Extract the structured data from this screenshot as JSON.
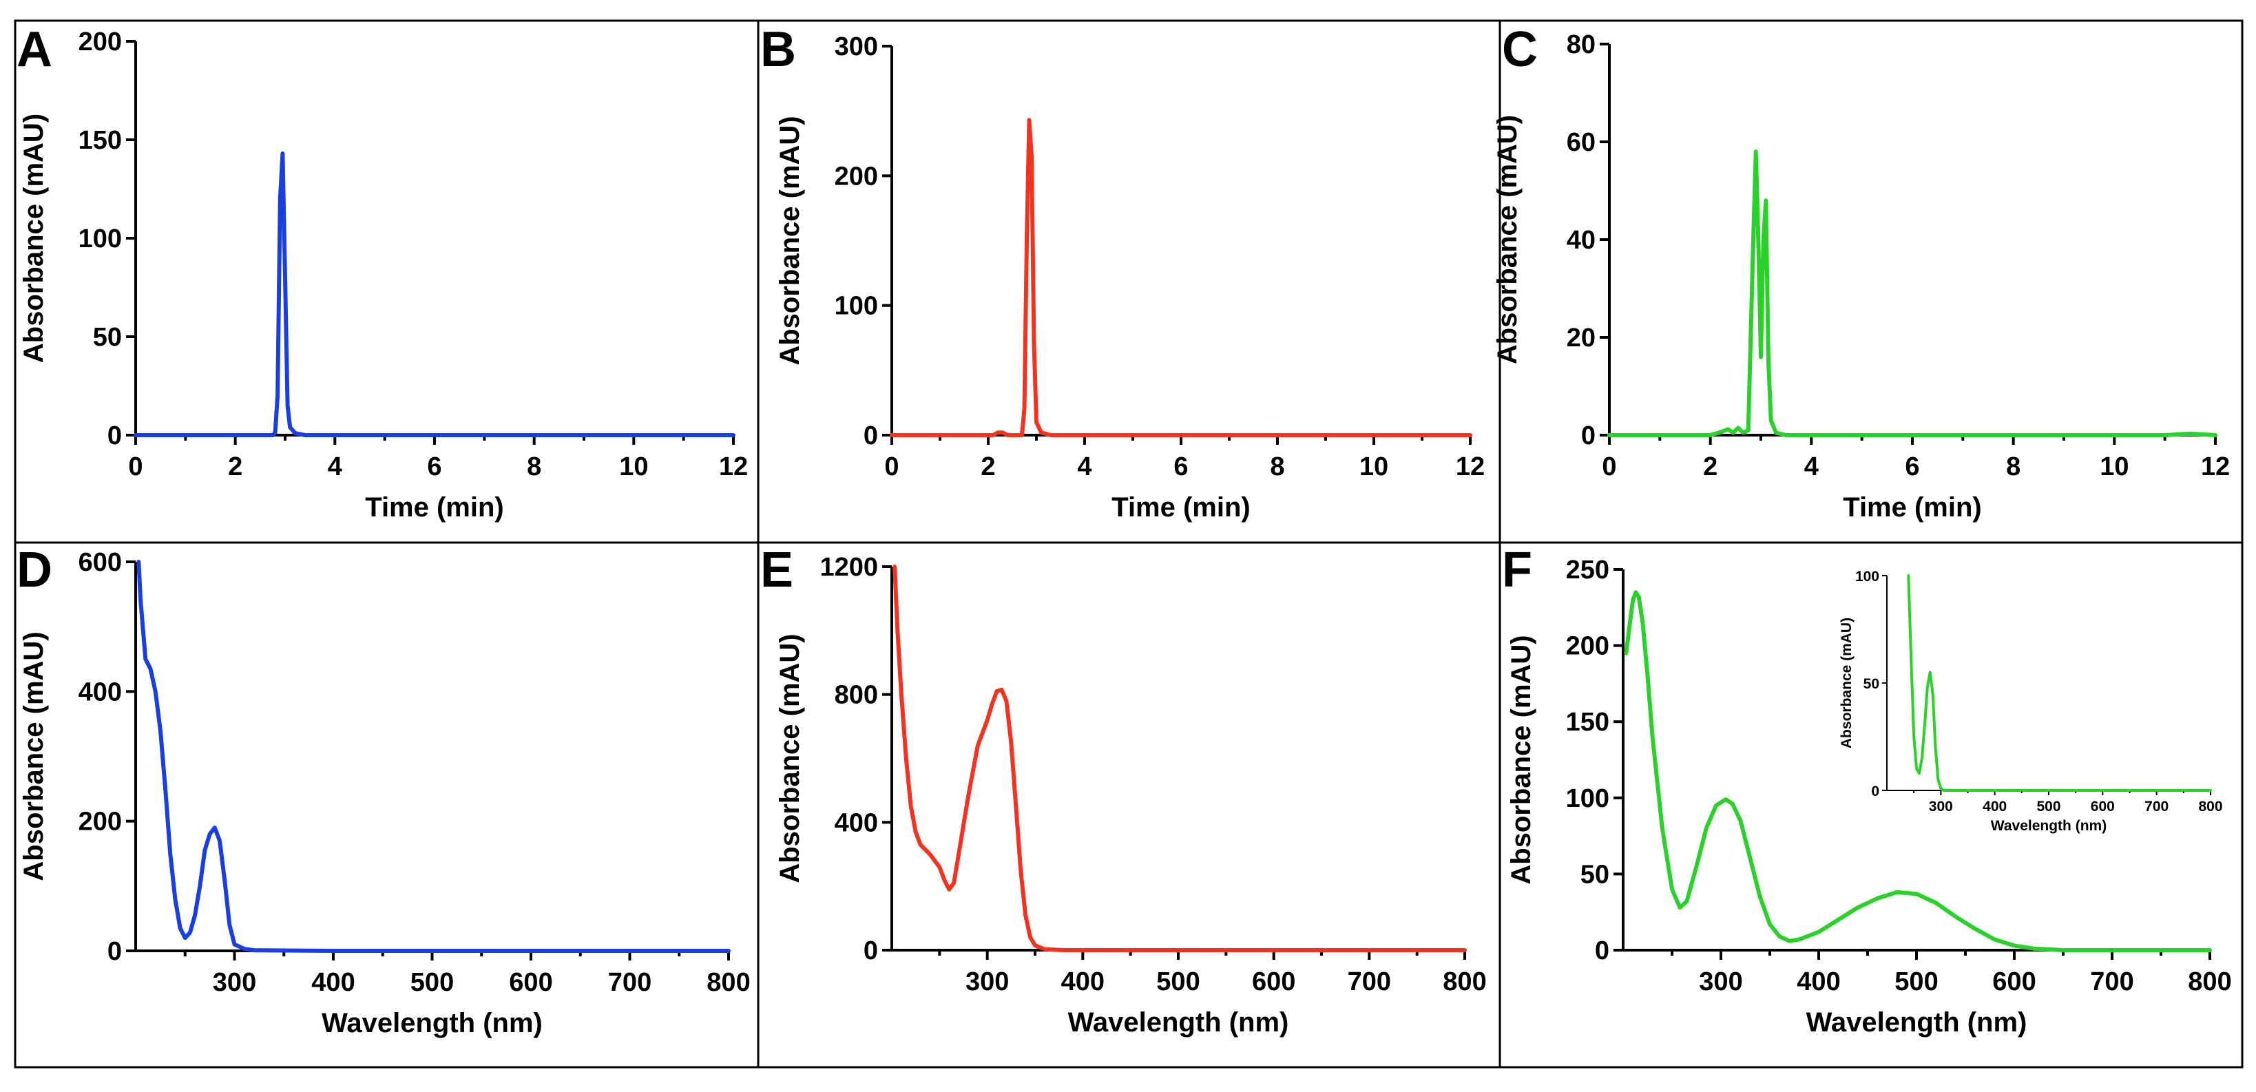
{
  "figure": {
    "colors": {
      "blue": "#1a3fe0",
      "red": "#f2331f",
      "green": "#2bd12b"
    }
  },
  "chart_data": [
    {
      "id": "A",
      "label": "A",
      "type": "line",
      "xlabel": "Time (min)",
      "ylabel": "Absorbance (mAU)",
      "xlim": [
        0,
        12
      ],
      "ylim": [
        0,
        200
      ],
      "xticks": [
        0,
        2,
        4,
        6,
        8,
        10,
        12
      ],
      "yticks": [
        0,
        50,
        100,
        150,
        200
      ],
      "color": "#1a3fe0",
      "series": [
        {
          "name": "A",
          "x": [
            0,
            2.75,
            2.8,
            2.85,
            2.9,
            2.95,
            3.0,
            3.05,
            3.1,
            3.2,
            3.4,
            12
          ],
          "y": [
            0,
            0,
            1,
            20,
            120,
            143,
            80,
            15,
            4,
            1,
            0,
            0
          ]
        }
      ]
    },
    {
      "id": "B",
      "label": "B",
      "type": "line",
      "xlabel": "Time (min)",
      "ylabel": "Absorbance (mAU)",
      "xlim": [
        0,
        12
      ],
      "ylim": [
        0,
        300
      ],
      "xticks": [
        0,
        2,
        4,
        6,
        8,
        10,
        12
      ],
      "yticks": [
        0,
        100,
        200,
        300
      ],
      "color": "#f2331f",
      "series": [
        {
          "name": "B",
          "x": [
            0,
            2.1,
            2.2,
            2.3,
            2.4,
            2.7,
            2.75,
            2.8,
            2.85,
            2.9,
            2.95,
            3.0,
            3.1,
            3.3,
            12
          ],
          "y": [
            0,
            0,
            2,
            2,
            0,
            0,
            20,
            150,
            243,
            215,
            70,
            10,
            2,
            0,
            0
          ]
        }
      ]
    },
    {
      "id": "C",
      "label": "C",
      "type": "line",
      "xlabel": "Time (min)",
      "ylabel": "Absorbance (mAU)",
      "xlim": [
        0,
        12
      ],
      "ylim": [
        0,
        80
      ],
      "xticks": [
        0,
        2,
        4,
        6,
        8,
        10,
        12
      ],
      "yticks": [
        0,
        20,
        40,
        60,
        80
      ],
      "color": "#2bd12b",
      "series": [
        {
          "name": "C",
          "x": [
            0,
            2.0,
            2.2,
            2.35,
            2.45,
            2.55,
            2.65,
            2.75,
            2.85,
            2.9,
            2.95,
            3.0,
            3.05,
            3.1,
            3.15,
            3.2,
            3.3,
            3.5,
            11.0,
            11.5,
            12
          ],
          "y": [
            0,
            0,
            0.6,
            1.2,
            0.5,
            1.5,
            0.5,
            1,
            40,
            58,
            40,
            16,
            40,
            48,
            15,
            3,
            0.5,
            0,
            0,
            0.3,
            0
          ]
        }
      ]
    },
    {
      "id": "D",
      "label": "D",
      "type": "line",
      "xlabel": "Wavelength (nm)",
      "ylabel": "Absorbance (mAU)",
      "xlim": [
        200,
        800
      ],
      "ylim": [
        0,
        600
      ],
      "xticks": [
        300,
        400,
        500,
        600,
        700,
        800
      ],
      "yticks": [
        0,
        200,
        400,
        600
      ],
      "color": "#1a3fe0",
      "series": [
        {
          "name": "D",
          "x": [
            203,
            205,
            210,
            215,
            220,
            225,
            230,
            235,
            240,
            245,
            250,
            255,
            260,
            265,
            270,
            275,
            280,
            285,
            290,
            295,
            300,
            310,
            320,
            400,
            800
          ],
          "y": [
            600,
            540,
            450,
            435,
            400,
            340,
            250,
            150,
            80,
            35,
            20,
            28,
            55,
            100,
            155,
            180,
            190,
            170,
            110,
            40,
            10,
            3,
            1,
            0,
            0
          ]
        }
      ]
    },
    {
      "id": "E",
      "label": "E",
      "type": "line",
      "xlabel": "Wavelength (nm)",
      "ylabel": "Absorbance (mAU)",
      "xlim": [
        200,
        800
      ],
      "ylim": [
        0,
        1200
      ],
      "xticks": [
        300,
        400,
        500,
        600,
        700,
        800
      ],
      "yticks": [
        0,
        400,
        800,
        1200
      ],
      "color": "#f2331f",
      "series": [
        {
          "name": "E",
          "x": [
            203,
            206,
            210,
            215,
            220,
            225,
            230,
            240,
            250,
            255,
            260,
            265,
            270,
            280,
            290,
            300,
            305,
            310,
            315,
            320,
            325,
            330,
            335,
            340,
            345,
            350,
            360,
            380,
            800
          ],
          "y": [
            1200,
            1000,
            800,
            600,
            450,
            370,
            330,
            300,
            260,
            220,
            190,
            210,
            300,
            480,
            640,
            720,
            770,
            810,
            815,
            780,
            650,
            450,
            250,
            110,
            40,
            15,
            3,
            0,
            0
          ]
        }
      ]
    },
    {
      "id": "F",
      "label": "F",
      "type": "line",
      "xlabel": "Wavelength (nm)",
      "ylabel": "Absorbance (mAU)",
      "xlim": [
        200,
        800
      ],
      "ylim": [
        0,
        250
      ],
      "xticks": [
        300,
        400,
        500,
        600,
        700,
        800
      ],
      "yticks": [
        0,
        50,
        100,
        150,
        200,
        250
      ],
      "color": "#2bd12b",
      "series": [
        {
          "name": "F",
          "x": [
            203,
            207,
            210,
            213,
            216,
            220,
            225,
            230,
            240,
            250,
            258,
            265,
            275,
            285,
            295,
            305,
            312,
            320,
            330,
            340,
            350,
            360,
            370,
            380,
            400,
            420,
            440,
            460,
            480,
            500,
            520,
            540,
            560,
            580,
            600,
            620,
            650,
            700,
            800
          ],
          "y": [
            195,
            215,
            230,
            235,
            232,
            215,
            180,
            140,
            80,
            40,
            28,
            32,
            55,
            80,
            95,
            99,
            96,
            85,
            60,
            35,
            17,
            9,
            6,
            7,
            12,
            20,
            28,
            34,
            38,
            37,
            31,
            22,
            14,
            7,
            3,
            1,
            0,
            0,
            0
          ]
        }
      ],
      "inset": {
        "xlabel": "Wavelength (nm)",
        "ylabel": "Absorbance (mAU)",
        "xlim": [
          200,
          800
        ],
        "ylim": [
          0,
          100
        ],
        "xticks": [
          300,
          400,
          500,
          600,
          700,
          800
        ],
        "yticks": [
          0,
          50,
          100
        ],
        "x": [
          240,
          245,
          250,
          255,
          260,
          265,
          270,
          275,
          280,
          285,
          290,
          295,
          300,
          305,
          310,
          320,
          400,
          800
        ],
        "y": [
          100,
          60,
          25,
          10,
          8,
          15,
          30,
          48,
          55,
          45,
          20,
          5,
          1,
          0,
          0,
          0,
          0,
          0
        ]
      }
    }
  ]
}
